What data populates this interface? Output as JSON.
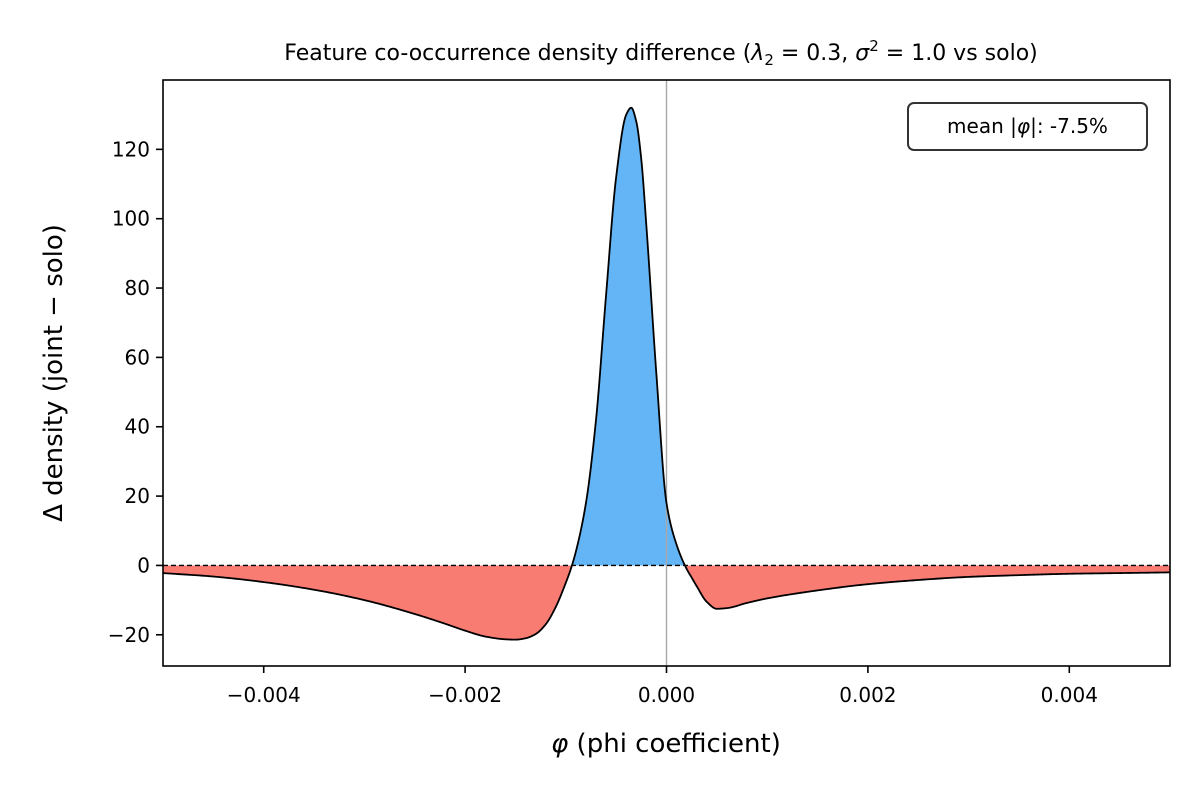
{
  "chart_data": {
    "type": "area",
    "title_parts": {
      "prefix": "Feature co-occurrence density difference (",
      "lambda_symbol": "λ",
      "lambda_sub": "2",
      "lambda_eq": " = 0.3, ",
      "sigma_symbol": "σ",
      "sigma_sup": "2",
      "sigma_eq": " = 1.0 vs solo)"
    },
    "xlabel_parts": {
      "symbol": "φ",
      "text": " (phi coefficient)"
    },
    "ylabel": "Δ density (joint − solo)",
    "xlim": [
      -0.005,
      0.005
    ],
    "ylim": [
      -29,
      140
    ],
    "xticks": [
      -0.004,
      -0.002,
      0.0,
      0.002,
      0.004
    ],
    "xtick_labels": [
      "−0.004",
      "−0.002",
      "0.000",
      "0.002",
      "0.004"
    ],
    "yticks": [
      -20,
      0,
      20,
      40,
      60,
      80,
      100,
      120
    ],
    "ytick_labels": [
      "−20",
      "0",
      "20",
      "40",
      "60",
      "80",
      "100",
      "120"
    ],
    "series": [
      {
        "name": "Δ density",
        "x": [
          -0.005,
          -0.0045,
          -0.004,
          -0.0035,
          -0.003,
          -0.0025,
          -0.0022,
          -0.002,
          -0.0018,
          -0.0016,
          -0.0015,
          -0.0014,
          -0.0013,
          -0.0012,
          -0.0011,
          -0.001,
          -0.00095,
          -0.0009,
          -0.0008,
          -0.0007,
          -0.0006,
          -0.0005,
          -0.0004,
          -0.00035,
          -0.0003,
          -0.00025,
          -0.0002,
          -0.0001,
          0.0,
          0.0001,
          0.0002,
          0.00025,
          0.0003,
          0.0004,
          0.0005,
          0.0006,
          0.0008,
          0.001,
          0.0015,
          0.002,
          0.0025,
          0.003,
          0.0035,
          0.004,
          0.0045,
          0.005
        ],
        "y": [
          -2.2,
          -3.2,
          -4.8,
          -7.0,
          -10.0,
          -14.0,
          -16.8,
          -18.8,
          -20.5,
          -21.3,
          -21.4,
          -21.0,
          -19.8,
          -17.0,
          -12.0,
          -5.0,
          -1.0,
          4.0,
          18.0,
          42.0,
          78.0,
          112.0,
          130.0,
          132.0,
          128.0,
          117.0,
          98.0,
          55.0,
          18.0,
          6.0,
          -1.0,
          -3.5,
          -6.0,
          -10.5,
          -12.5,
          -12.3,
          -10.8,
          -9.5,
          -7.2,
          -5.4,
          -4.2,
          -3.3,
          -2.8,
          -2.4,
          -2.2,
          -2.0
        ]
      }
    ],
    "fill_colors": {
      "positive": "#64b5f6",
      "negative": "#f87c72"
    },
    "line_color": "#000000",
    "zero_line": "dashed",
    "vertical_line_at": 0.0,
    "annotation": {
      "prefix": "mean |",
      "symbol": "φ",
      "suffix": "|: -7.5%"
    },
    "legend": "none",
    "grid": false
  }
}
